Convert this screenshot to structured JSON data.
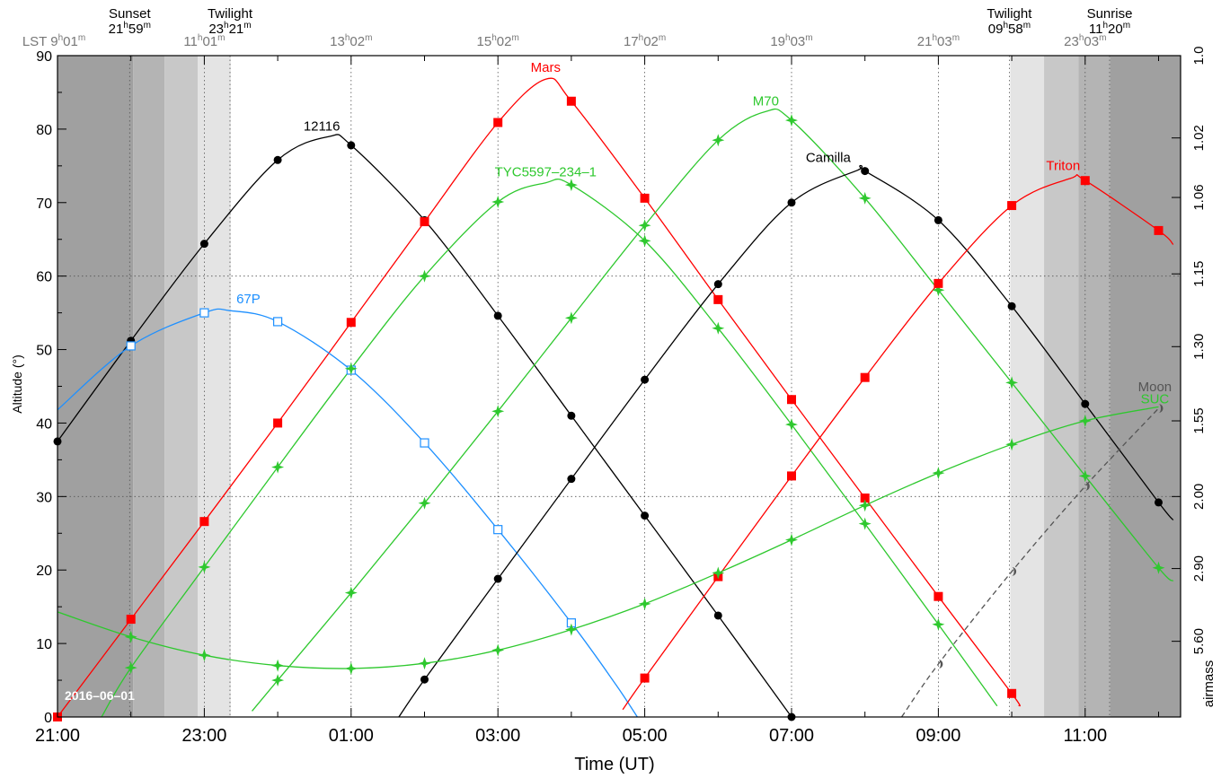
{
  "chart_data": {
    "type": "line",
    "date_label": "2016–06–01",
    "x_axis": {
      "label": "Time (UT)",
      "range_hours": [
        21,
        36.3
      ],
      "tick_labels": [
        "21:00",
        "23:00",
        "01:00",
        "03:00",
        "05:00",
        "07:00",
        "09:00",
        "11:00"
      ]
    },
    "y_axis": {
      "label": "Altitude (°)",
      "range": [
        0,
        90
      ],
      "ticks": [
        0,
        10,
        20,
        30,
        40,
        50,
        60,
        70,
        80,
        90
      ]
    },
    "right_axis": {
      "label": "airmass",
      "ticks": [
        {
          "alt": 90,
          "label": "1.0"
        },
        {
          "alt": 78.8,
          "label": "1.02"
        },
        {
          "alt": 70.7,
          "label": "1.06"
        },
        {
          "alt": 60.3,
          "label": "1.15"
        },
        {
          "alt": 50.4,
          "label": "1.30"
        },
        {
          "alt": 40.3,
          "label": "1.55"
        },
        {
          "alt": 30.0,
          "label": "2.00"
        },
        {
          "alt": 20.2,
          "label": "2.90"
        },
        {
          "alt": 10.3,
          "label": "5.60"
        }
      ]
    },
    "lst_axis": {
      "prefix": "LST",
      "ticks": [
        {
          "x": 21.0,
          "h": "9",
          "m": "01"
        },
        {
          "x": 23.0,
          "h": "11",
          "m": "01"
        },
        {
          "x": 25.0,
          "h": "13",
          "m": "02"
        },
        {
          "x": 27.0,
          "h": "15",
          "m": "02"
        },
        {
          "x": 29.0,
          "h": "17",
          "m": "02"
        },
        {
          "x": 31.0,
          "h": "19",
          "m": "03"
        },
        {
          "x": 33.0,
          "h": "21",
          "m": "03"
        },
        {
          "x": 35.0,
          "h": "23",
          "m": "03"
        }
      ]
    },
    "twilight_markers": [
      {
        "name": "Sunset",
        "x": 21.983,
        "h": "21",
        "m": "59"
      },
      {
        "name": "Twilight",
        "x": 23.35,
        "h": "23",
        "m": "21"
      },
      {
        "name": "Twilight",
        "x": 33.967,
        "h": "09",
        "m": "58"
      },
      {
        "name": "Sunrise",
        "x": 35.333,
        "h": "11",
        "m": "20"
      }
    ],
    "shading_bands": [
      {
        "x0": 21.0,
        "x1": 22.03,
        "gray": "#a0a0a0"
      },
      {
        "x0": 22.03,
        "x1": 22.46,
        "gray": "#b4b4b4"
      },
      {
        "x0": 22.46,
        "x1": 22.91,
        "gray": "#c8c8c8"
      },
      {
        "x0": 22.91,
        "x1": 23.36,
        "gray": "#e4e4e4"
      },
      {
        "x0": 33.98,
        "x1": 34.44,
        "gray": "#e4e4e4"
      },
      {
        "x0": 34.44,
        "x1": 34.91,
        "gray": "#c8c8c8"
      },
      {
        "x0": 34.91,
        "x1": 35.34,
        "gray": "#b4b4b4"
      },
      {
        "x0": 35.34,
        "x1": 36.3,
        "gray": "#a0a0a0"
      }
    ],
    "series": [
      {
        "name": "12116",
        "color": "#000000",
        "marker": "circle",
        "points": [
          [
            21,
            37.5
          ],
          [
            22,
            51.2
          ],
          [
            23,
            64.4
          ],
          [
            24,
            75.8
          ],
          [
            25,
            77.8
          ],
          [
            26,
            67.6
          ],
          [
            27,
            54.6
          ],
          [
            28,
            41.0
          ],
          [
            29,
            27.4
          ],
          [
            30,
            13.8
          ],
          [
            31,
            0
          ]
        ],
        "curve": [
          [
            21,
            37.5
          ],
          [
            22,
            51.2
          ],
          [
            23,
            64.4
          ],
          [
            24,
            75.8
          ],
          [
            24.7,
            79
          ],
          [
            25,
            77.8
          ],
          [
            26,
            67.6
          ],
          [
            27,
            54.6
          ],
          [
            28,
            41.0
          ],
          [
            29,
            27.4
          ],
          [
            30,
            13.8
          ],
          [
            31,
            0
          ]
        ],
        "label": {
          "x": 24.6,
          "y": 79.8
        }
      },
      {
        "name": "Mars",
        "color": "#ff0000",
        "marker": "square",
        "points": [
          [
            21,
            0
          ],
          [
            22,
            13.3
          ],
          [
            23,
            26.6
          ],
          [
            24,
            40.0
          ],
          [
            25,
            53.7
          ],
          [
            26,
            67.4
          ],
          [
            27,
            80.9
          ],
          [
            28,
            83.8
          ],
          [
            29,
            70.6
          ],
          [
            30,
            56.8
          ],
          [
            31,
            43.2
          ],
          [
            32,
            29.8
          ],
          [
            33,
            16.4
          ],
          [
            34,
            3.2
          ]
        ],
        "curve": [
          [
            21,
            0
          ],
          [
            22,
            13.3
          ],
          [
            23,
            26.6
          ],
          [
            24,
            40.0
          ],
          [
            25,
            53.7
          ],
          [
            26,
            67.4
          ],
          [
            27,
            80.9
          ],
          [
            27.65,
            86.8
          ],
          [
            28,
            83.8
          ],
          [
            29,
            70.6
          ],
          [
            30,
            56.8
          ],
          [
            31,
            43.2
          ],
          [
            32,
            29.8
          ],
          [
            33,
            16.4
          ],
          [
            34,
            3.2
          ],
          [
            34.1,
            1.5
          ]
        ],
        "label": {
          "x": 27.65,
          "y": 87.8
        }
      },
      {
        "name": "67P",
        "color": "#1e90ff",
        "marker": "open-square",
        "points": [
          [
            22,
            50.5
          ],
          [
            23,
            55.0
          ],
          [
            24,
            53.8
          ],
          [
            25,
            47.2
          ],
          [
            26,
            37.3
          ],
          [
            27,
            25.5
          ],
          [
            28,
            12.8
          ]
        ],
        "curve": [
          [
            21,
            41.8
          ],
          [
            22,
            50.5
          ],
          [
            23,
            55.0
          ],
          [
            23.35,
            55.3
          ],
          [
            24,
            53.8
          ],
          [
            25,
            47.2
          ],
          [
            26,
            37.3
          ],
          [
            27,
            25.5
          ],
          [
            28,
            12.8
          ],
          [
            28.6,
            4.5
          ],
          [
            28.9,
            0
          ]
        ],
        "label": {
          "x": 23.6,
          "y": 56.3
        }
      },
      {
        "name": "TYC5597–234–1",
        "color": "#2ec82e",
        "marker": "star",
        "points": [
          [
            22,
            6.7
          ],
          [
            23,
            20.4
          ],
          [
            24,
            34.0
          ],
          [
            25,
            47.4
          ],
          [
            26,
            60.0
          ],
          [
            27,
            70.1
          ],
          [
            28,
            72.4
          ],
          [
            29,
            64.8
          ],
          [
            30,
            52.9
          ],
          [
            31,
            39.8
          ],
          [
            32,
            26.3
          ],
          [
            33,
            12.6
          ]
        ],
        "curve": [
          [
            21.6,
            0
          ],
          [
            22,
            6.7
          ],
          [
            23,
            20.4
          ],
          [
            24,
            34.0
          ],
          [
            25,
            47.4
          ],
          [
            26,
            60.0
          ],
          [
            27,
            70.1
          ],
          [
            27.65,
            72.7
          ],
          [
            28,
            72.4
          ],
          [
            29,
            64.8
          ],
          [
            30,
            52.9
          ],
          [
            31,
            39.8
          ],
          [
            32,
            26.3
          ],
          [
            33,
            12.6
          ],
          [
            33.8,
            1.5
          ]
        ],
        "label": {
          "x": 27.65,
          "y": 73.6
        }
      },
      {
        "name": "M70",
        "color": "#2ec82e",
        "marker": "star",
        "points": [
          [
            24,
            5.0
          ],
          [
            25,
            16.9
          ],
          [
            26,
            29.1
          ],
          [
            27,
            41.6
          ],
          [
            28,
            54.3
          ],
          [
            29,
            66.9
          ],
          [
            30,
            78.5
          ],
          [
            31,
            81.2
          ],
          [
            32,
            70.6
          ],
          [
            33,
            58.1
          ],
          [
            34,
            45.5
          ],
          [
            35,
            32.8
          ],
          [
            36,
            20.3
          ]
        ],
        "curve": [
          [
            23.65,
            0.8
          ],
          [
            24,
            5.0
          ],
          [
            25,
            16.9
          ],
          [
            26,
            29.1
          ],
          [
            27,
            41.6
          ],
          [
            28,
            54.3
          ],
          [
            29,
            66.9
          ],
          [
            30,
            78.5
          ],
          [
            30.65,
            82.4
          ],
          [
            31,
            81.2
          ],
          [
            32,
            70.6
          ],
          [
            33,
            58.1
          ],
          [
            34,
            45.5
          ],
          [
            35,
            32.8
          ],
          [
            36,
            20.3
          ],
          [
            36.2,
            18.5
          ]
        ],
        "label": {
          "x": 30.65,
          "y": 83.2
        }
      },
      {
        "name": "Camilla",
        "color": "#000000",
        "marker": "circle",
        "points": [
          [
            26,
            5.1
          ],
          [
            27,
            18.8
          ],
          [
            28,
            32.4
          ],
          [
            29,
            45.9
          ],
          [
            30,
            58.9
          ],
          [
            31,
            70.0
          ],
          [
            32,
            74.3
          ],
          [
            33,
            67.6
          ],
          [
            34,
            55.9
          ],
          [
            35,
            42.6
          ],
          [
            36,
            29.2
          ]
        ],
        "curve": [
          [
            25.65,
            0
          ],
          [
            26,
            5.1
          ],
          [
            27,
            18.8
          ],
          [
            28,
            32.4
          ],
          [
            29,
            45.9
          ],
          [
            30,
            58.9
          ],
          [
            31,
            70.0
          ],
          [
            31.9,
            74.4
          ],
          [
            32,
            74.3
          ],
          [
            33,
            67.6
          ],
          [
            34,
            55.9
          ],
          [
            35,
            42.6
          ],
          [
            36,
            29.2
          ],
          [
            36.2,
            26.8
          ]
        ],
        "label": {
          "x": 31.5,
          "y": 75.5
        }
      },
      {
        "name": "Triton",
        "color": "#ff0000",
        "marker": "square",
        "points": [
          [
            29,
            5.3
          ],
          [
            30,
            19.1
          ],
          [
            31,
            32.8
          ],
          [
            32,
            46.2
          ],
          [
            33,
            59.0
          ],
          [
            34,
            69.6
          ],
          [
            35,
            73.0
          ],
          [
            36,
            66.2
          ]
        ],
        "curve": [
          [
            28.7,
            1.0
          ],
          [
            29,
            5.3
          ],
          [
            30,
            19.1
          ],
          [
            31,
            32.8
          ],
          [
            32,
            46.2
          ],
          [
            33,
            59.0
          ],
          [
            34,
            69.6
          ],
          [
            34.8,
            73.3
          ],
          [
            35,
            73.0
          ],
          [
            36,
            66.2
          ],
          [
            36.2,
            64.3
          ]
        ],
        "label": {
          "x": 34.7,
          "y": 74.4
        }
      },
      {
        "name": "SUC",
        "color": "#2ec82e",
        "marker": "star",
        "points": [
          [
            22,
            10.9
          ],
          [
            23,
            8.4
          ],
          [
            24,
            7.0
          ],
          [
            25,
            6.6
          ],
          [
            26,
            7.3
          ],
          [
            27,
            9.1
          ],
          [
            28,
            11.9
          ],
          [
            29,
            15.4
          ],
          [
            30,
            19.6
          ],
          [
            31,
            24.1
          ],
          [
            32,
            28.8
          ],
          [
            33,
            33.2
          ],
          [
            34,
            37.1
          ],
          [
            35,
            40.3
          ]
        ],
        "curve": [
          [
            21,
            14.3
          ],
          [
            22,
            10.9
          ],
          [
            23,
            8.4
          ],
          [
            24,
            7.0
          ],
          [
            25,
            6.6
          ],
          [
            26,
            7.3
          ],
          [
            27,
            9.1
          ],
          [
            28,
            11.9
          ],
          [
            29,
            15.4
          ],
          [
            30,
            19.6
          ],
          [
            31,
            24.1
          ],
          [
            32,
            28.8
          ],
          [
            33,
            33.2
          ],
          [
            34,
            37.1
          ],
          [
            35,
            40.3
          ],
          [
            36,
            42.2
          ]
        ],
        "label": {
          "x": 35.95,
          "y": 42.7
        }
      },
      {
        "name": "Moon",
        "color": "#555555",
        "marker": "moon",
        "dashed": true,
        "points": [
          [
            33,
            7.2
          ],
          [
            34,
            19.8
          ],
          [
            35,
            31.4
          ],
          [
            36,
            42.0
          ]
        ],
        "curve": [
          [
            32.5,
            0
          ],
          [
            33,
            7.2
          ],
          [
            34,
            19.8
          ],
          [
            35,
            31.4
          ],
          [
            36,
            42.0
          ]
        ],
        "label": {
          "x": 35.95,
          "y": 44.3
        }
      }
    ]
  }
}
